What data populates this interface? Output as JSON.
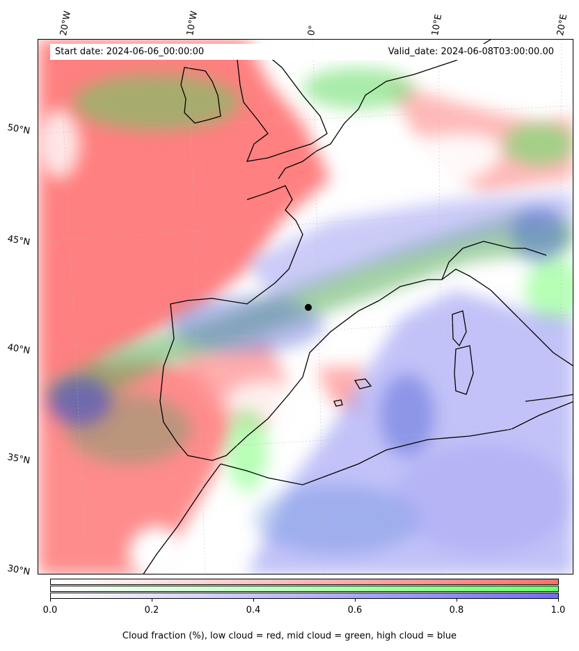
{
  "header": {
    "start_date": "Start date: 2024-06-06_00:00:00",
    "valid_date": "Valid_date: 2024-06-08T03:00:00.00"
  },
  "longitude_labels": [
    "20°W",
    "10°W",
    "0°",
    "10°E",
    "20°E"
  ],
  "latitude_labels": [
    "50°N",
    "45°N",
    "40°N",
    "35°N",
    "30°N"
  ],
  "colorbar": {
    "ticks": [
      "0.0",
      "0.2",
      "0.4",
      "0.6",
      "0.8",
      "1.0"
    ],
    "caption": "Cloud fraction (%), low cloud = red, mid cloud = green, high cloud = blue",
    "colors": {
      "low": "#ff6e6e",
      "mid": "#6eff6e",
      "high": "#6e6eff"
    }
  },
  "legend_colors": {
    "low_cloud": "#ff7070",
    "mid_cloud": "#70ff70",
    "high_cloud": "#7070ff"
  }
}
